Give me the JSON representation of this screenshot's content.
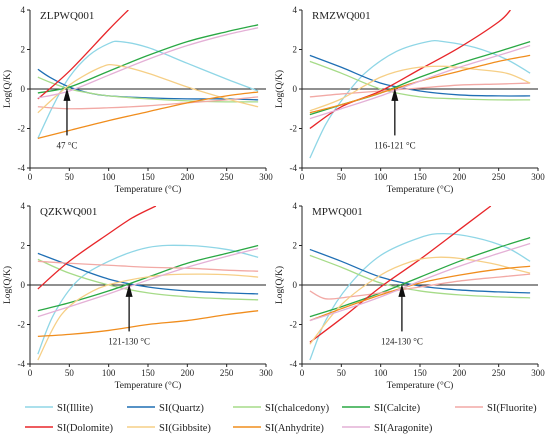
{
  "colors": {
    "SI(Illite)": "#8fd6e6",
    "SI(Quartz)": "#1f6fb4",
    "SI(chalcedony)": "#a6db88",
    "SI(Calcite)": "#2aa844",
    "SI(Fluorite)": "#f2a9a5",
    "SI(Dolomite)": "#e8262a",
    "SI(Gibbsite)": "#f6cf86",
    "SI(Anhydrite)": "#f08d1d",
    "SI(Aragonite)": "#e4b0d6"
  },
  "legend": {
    "items": [
      "SI(Illite)",
      "SI(Quartz)",
      "SI(chalcedony)",
      "SI(Calcite)",
      "SI(Fluorite)",
      "SI(Dolomite)",
      "SI(Gibbsite)",
      "SI(Anhydrite)",
      "SI(Aragonite)"
    ]
  },
  "chart_data": [
    {
      "type": "line",
      "title": "ZLPWQ001",
      "xlabel": "Temperature (°C)",
      "ylabel": "Log(Q/K)",
      "xlim": [
        0,
        300
      ],
      "ylim": [
        -4,
        4
      ],
      "xticks": [
        0,
        50,
        100,
        150,
        200,
        250,
        300
      ],
      "yticks": [
        -4,
        -2,
        0,
        2,
        4
      ],
      "annotation": {
        "text": "47 °C",
        "x": 47
      },
      "series": [
        {
          "name": "SI(Illite)",
          "x": [
            10,
            30,
            50,
            75,
            100,
            115,
            150,
            200,
            250,
            290
          ],
          "y": [
            -2.5,
            -0.8,
            0.6,
            1.7,
            2.3,
            2.4,
            2.1,
            1.3,
            0.5,
            -0.1
          ]
        },
        {
          "name": "SI(Quartz)",
          "x": [
            10,
            25,
            50,
            75,
            100,
            150,
            200,
            250,
            290
          ],
          "y": [
            1.0,
            0.6,
            0.1,
            -0.2,
            -0.35,
            -0.45,
            -0.5,
            -0.5,
            -0.55
          ]
        },
        {
          "name": "SI(chalcedony)",
          "x": [
            10,
            25,
            50,
            75,
            100,
            150,
            200,
            250,
            290
          ],
          "y": [
            0.6,
            0.35,
            0.0,
            -0.2,
            -0.35,
            -0.5,
            -0.6,
            -0.65,
            -0.65
          ]
        },
        {
          "name": "SI(Calcite)",
          "x": [
            10,
            50,
            100,
            150,
            200,
            250,
            290
          ],
          "y": [
            -0.2,
            0.1,
            0.9,
            1.7,
            2.4,
            2.9,
            3.25
          ]
        },
        {
          "name": "SI(Fluorite)",
          "x": [
            10,
            50,
            100,
            150,
            200,
            250,
            290
          ],
          "y": [
            -0.9,
            -1.0,
            -0.95,
            -0.85,
            -0.7,
            -0.55,
            -0.4
          ]
        },
        {
          "name": "SI(Dolomite)",
          "x": [
            10,
            50,
            100,
            125
          ],
          "y": [
            -0.5,
            0.9,
            3.0,
            4.0
          ]
        },
        {
          "name": "SI(Gibbsite)",
          "x": [
            10,
            50,
            90,
            110,
            150,
            200,
            250,
            290
          ],
          "y": [
            -1.2,
            0.2,
            1.1,
            1.2,
            0.8,
            0.1,
            -0.5,
            -0.9
          ]
        },
        {
          "name": "SI(Anhydrite)",
          "x": [
            10,
            50,
            100,
            150,
            200,
            250,
            290
          ],
          "y": [
            -2.5,
            -2.1,
            -1.6,
            -1.15,
            -0.7,
            -0.35,
            -0.15
          ]
        },
        {
          "name": "SI(Aragonite)",
          "x": [
            10,
            50,
            100,
            150,
            200,
            250,
            290
          ],
          "y": [
            -0.45,
            -0.1,
            0.7,
            1.5,
            2.2,
            2.75,
            3.1
          ]
        }
      ]
    },
    {
      "type": "line",
      "title": "RMZWQ001",
      "xlabel": "Temperature (°C)",
      "ylabel": "Log(Q/K)",
      "xlim": [
        0,
        300
      ],
      "ylim": [
        -4,
        4
      ],
      "xticks": [
        0,
        50,
        100,
        150,
        200,
        250,
        300
      ],
      "yticks": [
        -4,
        -2,
        0,
        2,
        4
      ],
      "annotation": {
        "text": "116-121 °C",
        "x": 118
      },
      "series": [
        {
          "name": "SI(Illite)",
          "x": [
            10,
            30,
            50,
            80,
            120,
            160,
            180,
            220,
            260,
            290
          ],
          "y": [
            -3.5,
            -1.8,
            -0.6,
            0.8,
            1.9,
            2.4,
            2.4,
            2.1,
            1.5,
            0.8
          ]
        },
        {
          "name": "SI(Quartz)",
          "x": [
            10,
            50,
            100,
            150,
            200,
            250,
            290
          ],
          "y": [
            1.7,
            1.1,
            0.3,
            -0.1,
            -0.3,
            -0.35,
            -0.35
          ]
        },
        {
          "name": "SI(chalcedony)",
          "x": [
            10,
            50,
            100,
            150,
            200,
            250,
            290
          ],
          "y": [
            1.4,
            0.8,
            0.0,
            -0.4,
            -0.5,
            -0.55,
            -0.55
          ]
        },
        {
          "name": "SI(Calcite)",
          "x": [
            10,
            50,
            100,
            150,
            200,
            250,
            290
          ],
          "y": [
            -1.3,
            -0.8,
            -0.2,
            0.6,
            1.3,
            1.9,
            2.4
          ]
        },
        {
          "name": "SI(Fluorite)",
          "x": [
            10,
            50,
            100,
            150,
            200,
            250,
            290
          ],
          "y": [
            -0.4,
            -0.25,
            -0.1,
            0.05,
            0.2,
            0.25,
            0.3
          ]
        },
        {
          "name": "SI(Dolomite)",
          "x": [
            10,
            50,
            100,
            150,
            200,
            250,
            265
          ],
          "y": [
            -2.0,
            -0.9,
            -0.1,
            1.0,
            2.1,
            3.4,
            4.0
          ]
        },
        {
          "name": "SI(Gibbsite)",
          "x": [
            10,
            50,
            100,
            140,
            180,
            220,
            260,
            290
          ],
          "y": [
            -1.1,
            -0.5,
            0.6,
            1.05,
            1.15,
            1.0,
            0.8,
            0.3
          ]
        },
        {
          "name": "SI(Anhydrite)",
          "x": [
            10,
            50,
            100,
            150,
            200,
            250,
            290
          ],
          "y": [
            -1.2,
            -0.8,
            -0.2,
            0.4,
            0.9,
            1.4,
            1.7
          ]
        },
        {
          "name": "SI(Aragonite)",
          "x": [
            10,
            50,
            100,
            150,
            200,
            250,
            290
          ],
          "y": [
            -1.5,
            -1.0,
            -0.35,
            0.4,
            1.1,
            1.7,
            2.2
          ]
        }
      ]
    },
    {
      "type": "line",
      "title": "QZKWQ001",
      "xlabel": "Temperature (°C)",
      "ylabel": "Log(Q/K)",
      "xlim": [
        0,
        300
      ],
      "ylim": [
        -4,
        4
      ],
      "xticks": [
        0,
        50,
        100,
        150,
        200,
        250,
        300
      ],
      "yticks": [
        -4,
        -2,
        0,
        2,
        4
      ],
      "annotation": {
        "text": "121-130 °C",
        "x": 126
      },
      "series": [
        {
          "name": "SI(Illite)",
          "x": [
            10,
            30,
            60,
            100,
            150,
            200,
            250,
            290
          ],
          "y": [
            -3.5,
            -1.5,
            0.2,
            1.2,
            1.9,
            2.0,
            1.8,
            1.4
          ]
        },
        {
          "name": "SI(Quartz)",
          "x": [
            10,
            50,
            100,
            150,
            200,
            250,
            290
          ],
          "y": [
            1.6,
            1.0,
            0.3,
            -0.1,
            -0.3,
            -0.4,
            -0.45
          ]
        },
        {
          "name": "SI(chalcedony)",
          "x": [
            10,
            50,
            100,
            150,
            200,
            250,
            290
          ],
          "y": [
            1.3,
            0.6,
            0.0,
            -0.4,
            -0.6,
            -0.7,
            -0.75
          ]
        },
        {
          "name": "SI(Calcite)",
          "x": [
            10,
            50,
            100,
            150,
            200,
            250,
            290
          ],
          "y": [
            -1.3,
            -0.9,
            -0.3,
            0.4,
            1.1,
            1.6,
            2.0
          ]
        },
        {
          "name": "SI(Fluorite)",
          "x": [
            10,
            50,
            100,
            150,
            200,
            250,
            290
          ],
          "y": [
            1.2,
            1.1,
            1.0,
            0.9,
            0.85,
            0.75,
            0.7
          ]
        },
        {
          "name": "SI(Dolomite)",
          "x": [
            10,
            50,
            100,
            130,
            160
          ],
          "y": [
            -0.2,
            1.2,
            2.6,
            3.4,
            4.0
          ]
        },
        {
          "name": "SI(Gibbsite)",
          "x": [
            10,
            40,
            80,
            120,
            170,
            220,
            260,
            290
          ],
          "y": [
            -3.8,
            -1.5,
            -0.3,
            0.2,
            0.5,
            0.55,
            0.5,
            0.4
          ]
        },
        {
          "name": "SI(Anhydrite)",
          "x": [
            10,
            50,
            100,
            150,
            200,
            250,
            290
          ],
          "y": [
            -2.6,
            -2.5,
            -2.3,
            -2.0,
            -1.8,
            -1.5,
            -1.3
          ]
        },
        {
          "name": "SI(Aragonite)",
          "x": [
            10,
            50,
            100,
            150,
            200,
            250,
            290
          ],
          "y": [
            -1.6,
            -1.1,
            -0.45,
            0.25,
            0.9,
            1.45,
            1.85
          ]
        }
      ]
    },
    {
      "type": "line",
      "title": "MPWQ001",
      "xlabel": "Temperature (°C)",
      "ylabel": "Log(Q/K)",
      "xlim": [
        0,
        300
      ],
      "ylim": [
        -4,
        4
      ],
      "xticks": [
        0,
        50,
        100,
        150,
        200,
        250,
        300
      ],
      "yticks": [
        -4,
        -2,
        0,
        2,
        4
      ],
      "annotation": {
        "text": "124-130 °C",
        "x": 127
      },
      "series": [
        {
          "name": "SI(Illite)",
          "x": [
            10,
            30,
            60,
            100,
            150,
            180,
            220,
            260,
            290
          ],
          "y": [
            -3.8,
            -1.8,
            0.0,
            1.5,
            2.4,
            2.6,
            2.4,
            1.9,
            1.2
          ]
        },
        {
          "name": "SI(Quartz)",
          "x": [
            10,
            50,
            100,
            150,
            200,
            250,
            290
          ],
          "y": [
            1.8,
            1.2,
            0.4,
            -0.05,
            -0.25,
            -0.35,
            -0.4
          ]
        },
        {
          "name": "SI(chalcedony)",
          "x": [
            10,
            50,
            100,
            150,
            200,
            250,
            290
          ],
          "y": [
            1.5,
            0.9,
            0.1,
            -0.3,
            -0.5,
            -0.6,
            -0.65
          ]
        },
        {
          "name": "SI(Calcite)",
          "x": [
            10,
            50,
            100,
            150,
            200,
            250,
            290
          ],
          "y": [
            -1.6,
            -1.1,
            -0.4,
            0.4,
            1.2,
            1.9,
            2.4
          ]
        },
        {
          "name": "SI(Fluorite)",
          "x": [
            10,
            30,
            60,
            100,
            150,
            200,
            250,
            290
          ],
          "y": [
            -0.3,
            -0.7,
            -0.6,
            -0.4,
            -0.1,
            0.2,
            0.4,
            0.55
          ]
        },
        {
          "name": "SI(Dolomite)",
          "x": [
            10,
            50,
            100,
            150,
            200,
            240
          ],
          "y": [
            -2.9,
            -1.7,
            -0.1,
            1.3,
            2.8,
            4.0
          ]
        },
        {
          "name": "SI(Gibbsite)",
          "x": [
            10,
            50,
            100,
            140,
            170,
            200,
            240,
            270,
            290
          ],
          "y": [
            -3.0,
            -1.0,
            0.5,
            1.2,
            1.4,
            1.35,
            1.1,
            0.8,
            0.6
          ]
        },
        {
          "name": "SI(Anhydrite)",
          "x": [
            10,
            50,
            100,
            150,
            200,
            250,
            290
          ],
          "y": [
            -1.8,
            -1.2,
            -0.5,
            0.1,
            0.5,
            0.8,
            0.95
          ]
        },
        {
          "name": "SI(Aragonite)",
          "x": [
            10,
            50,
            100,
            150,
            200,
            250,
            290
          ],
          "y": [
            -1.8,
            -1.3,
            -0.6,
            0.2,
            0.95,
            1.6,
            2.1
          ]
        }
      ]
    }
  ]
}
